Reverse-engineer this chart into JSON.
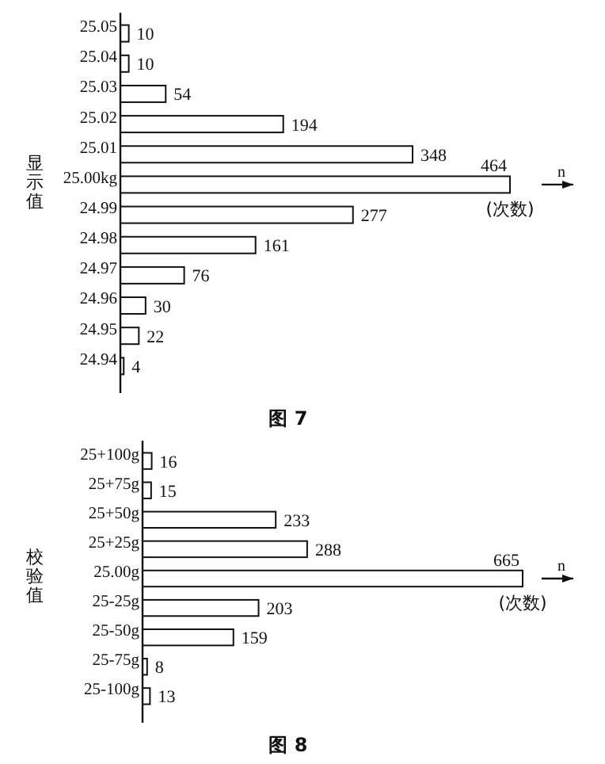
{
  "chart_data": [
    {
      "type": "bar",
      "orientation": "horizontal",
      "title": "图 7",
      "ylabel": "显示值",
      "xlabel": "n",
      "annotations": [
        "(次数)"
      ],
      "data_labels": true,
      "color": "#ffffff",
      "categories": [
        "25.05",
        "25.04",
        "25.03",
        "25.02",
        "25.01",
        "25.00kg",
        "24.99",
        "24.98",
        "24.97",
        "24.96",
        "24.95",
        "24.94"
      ],
      "values": [
        10,
        10,
        54,
        194,
        348,
        464,
        277,
        161,
        76,
        30,
        22,
        4
      ]
    },
    {
      "type": "bar",
      "orientation": "horizontal",
      "title": "图 8",
      "ylabel": "校验值",
      "xlabel": "n",
      "annotations": [
        "(次数)"
      ],
      "data_labels": true,
      "color": "#ffffff",
      "categories": [
        "25+100g",
        "25+75g",
        "25+50g",
        "25+25g",
        "25.00g",
        "25-25g",
        "25-50g",
        "25-75g",
        "25-100g"
      ],
      "values": [
        16,
        15,
        233,
        288,
        665,
        203,
        159,
        8,
        13
      ]
    }
  ]
}
